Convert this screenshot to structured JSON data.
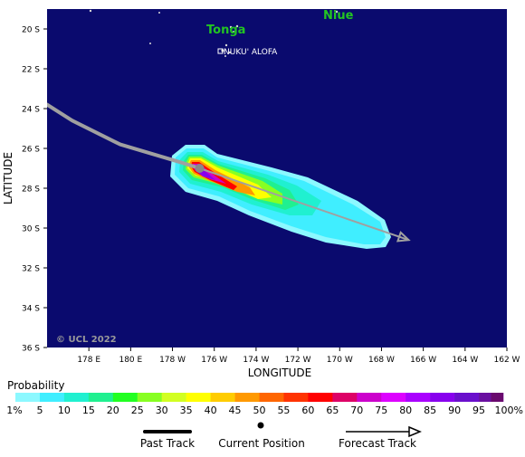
{
  "map": {
    "axis_x_title": "LONGITUDE",
    "axis_y_title": "LATITUDE",
    "copyright": "© UCL 2022",
    "ocean_color": "#0a0a6e",
    "land_color": "#d8d8d8",
    "lat_ticks": [
      {
        "value": -20,
        "label": "20 S"
      },
      {
        "value": -22,
        "label": "22 S"
      },
      {
        "value": -24,
        "label": "24 S"
      },
      {
        "value": -26,
        "label": "26 S"
      },
      {
        "value": -28,
        "label": "28 S"
      },
      {
        "value": -30,
        "label": "30 S"
      },
      {
        "value": -32,
        "label": "32 S"
      },
      {
        "value": -34,
        "label": "34 S"
      },
      {
        "value": -36,
        "label": "36 S"
      }
    ],
    "lon_ticks": [
      {
        "value": 178,
        "label": "178 E"
      },
      {
        "value": 180,
        "label": "180 E"
      },
      {
        "value": -178,
        "label": "178 W"
      },
      {
        "value": -176,
        "label": "176 W"
      },
      {
        "value": -174,
        "label": "174 W"
      },
      {
        "value": -172,
        "label": "172 W"
      },
      {
        "value": -170,
        "label": "170 W"
      },
      {
        "value": -168,
        "label": "168 W"
      },
      {
        "value": -166,
        "label": "166 W"
      },
      {
        "value": -164,
        "label": "164 W"
      },
      {
        "value": -162,
        "label": "162 W"
      }
    ],
    "places": [
      {
        "name": "Tonga",
        "kind": "country",
        "color": "#22c522"
      },
      {
        "name": "Niue",
        "kind": "country",
        "color": "#22c522"
      },
      {
        "name": "NUKU' ALOFA",
        "kind": "city",
        "color": "#ffffff"
      }
    ],
    "past_track": [
      {
        "lon": 176.0,
        "lat": -23.8
      },
      {
        "lon": 177.2,
        "lat": -24.6
      },
      {
        "lon": 179.5,
        "lat": -25.8
      },
      {
        "lon": -177.6,
        "lat": -26.7
      },
      {
        "lon": -176.7,
        "lat": -27.0
      }
    ],
    "current_position": {
      "lon": -176.7,
      "lat": -27.0
    },
    "forecast_track": [
      {
        "lon": -176.7,
        "lat": -27.0
      },
      {
        "lon": -166.7,
        "lat": -30.6
      }
    ]
  },
  "legend": {
    "title": "Probability",
    "colors": [
      "#8cf8ff",
      "#40eeff",
      "#20f0d0",
      "#20f090",
      "#22ff22",
      "#88ff22",
      "#d2ff22",
      "#ffff00",
      "#ffcc00",
      "#ff9900",
      "#ff6600",
      "#ff3300",
      "#ff0000",
      "#dd0066",
      "#cc00cc",
      "#dd00ff",
      "#aa00ff",
      "#8800ee",
      "#6a0fcc",
      "#6a0fa0",
      "#6a0a6e"
    ],
    "labels": [
      "1%",
      "5",
      "10",
      "15",
      "20",
      "25",
      "30",
      "35",
      "40",
      "45",
      "50",
      "55",
      "60",
      "65",
      "70",
      "75",
      "80",
      "85",
      "90",
      "95",
      "100%"
    ],
    "past_track_label": "Past Track",
    "current_position_label": "Current Position",
    "forecast_track_label": "Forecast Track"
  }
}
